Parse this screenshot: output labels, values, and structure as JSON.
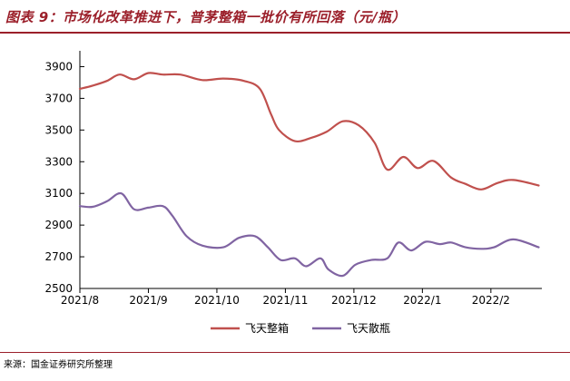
{
  "title": "图表 9：市场化改革推进下，普茅整箱一批价有所回落（元/瓶）",
  "source": "来源：国金证券研究所整理",
  "colors": {
    "series1": "#c0504d",
    "series2": "#8064a2",
    "accent": "#9b1f2a"
  },
  "chart_data": {
    "type": "line",
    "title": "市场化改革推进下，普茅整箱一批价有所回落（元/瓶）",
    "xlabel": "",
    "ylabel": "",
    "ylim": [
      2500,
      4000
    ],
    "yticks": [
      2500,
      2700,
      2900,
      3100,
      3300,
      3500,
      3700,
      3900
    ],
    "xlim": [
      0,
      29
    ],
    "x_ticks": [
      {
        "x": 0,
        "label": "2021/8"
      },
      {
        "x": 4.3,
        "label": "2021/9"
      },
      {
        "x": 8.6,
        "label": "2021/10"
      },
      {
        "x": 12.9,
        "label": "2021/11"
      },
      {
        "x": 17.2,
        "label": "2021/12"
      },
      {
        "x": 21.5,
        "label": "2022/1"
      },
      {
        "x": 25.8,
        "label": "2022/2"
      }
    ],
    "legend_position": "bottom-center",
    "series": [
      {
        "name": "飞天整箱",
        "color": "#c0504d",
        "points": [
          [
            0,
            3760
          ],
          [
            0.8,
            3780
          ],
          [
            1.7,
            3810
          ],
          [
            2.5,
            3850
          ],
          [
            3.4,
            3820
          ],
          [
            4.3,
            3860
          ],
          [
            5.2,
            3850
          ],
          [
            6.3,
            3850
          ],
          [
            7.7,
            3815
          ],
          [
            9,
            3825
          ],
          [
            10.3,
            3810
          ],
          [
            11.3,
            3760
          ],
          [
            12.0,
            3600
          ],
          [
            12.5,
            3500
          ],
          [
            13.5,
            3430
          ],
          [
            14.5,
            3450
          ],
          [
            15.5,
            3490
          ],
          [
            16.5,
            3555
          ],
          [
            17.5,
            3530
          ],
          [
            18.5,
            3420
          ],
          [
            19.3,
            3250
          ],
          [
            20.3,
            3330
          ],
          [
            21.2,
            3260
          ],
          [
            22.2,
            3305
          ],
          [
            23.3,
            3200
          ],
          [
            24.2,
            3160
          ],
          [
            25.2,
            3125
          ],
          [
            26.2,
            3165
          ],
          [
            27.2,
            3185
          ],
          [
            28.8,
            3150
          ]
        ]
      },
      {
        "name": "飞天散瓶",
        "color": "#8064a2",
        "points": [
          [
            0,
            3020
          ],
          [
            0.8,
            3015
          ],
          [
            1.7,
            3050
          ],
          [
            2.6,
            3100
          ],
          [
            3.4,
            3000
          ],
          [
            4.3,
            3010
          ],
          [
            5.2,
            3020
          ],
          [
            5.8,
            2960
          ],
          [
            6.7,
            2830
          ],
          [
            7.7,
            2770
          ],
          [
            9,
            2760
          ],
          [
            10.0,
            2820
          ],
          [
            11.0,
            2830
          ],
          [
            11.8,
            2760
          ],
          [
            12.6,
            2680
          ],
          [
            13.5,
            2690
          ],
          [
            14.2,
            2640
          ],
          [
            15.1,
            2690
          ],
          [
            15.6,
            2620
          ],
          [
            16.5,
            2580
          ],
          [
            17.3,
            2650
          ],
          [
            18.3,
            2680
          ],
          [
            19.3,
            2690
          ],
          [
            20.0,
            2790
          ],
          [
            20.8,
            2740
          ],
          [
            21.7,
            2795
          ],
          [
            22.6,
            2780
          ],
          [
            23.3,
            2790
          ],
          [
            24.2,
            2760
          ],
          [
            25.2,
            2750
          ],
          [
            26.0,
            2760
          ],
          [
            27.2,
            2810
          ],
          [
            28.8,
            2760
          ]
        ]
      }
    ]
  }
}
